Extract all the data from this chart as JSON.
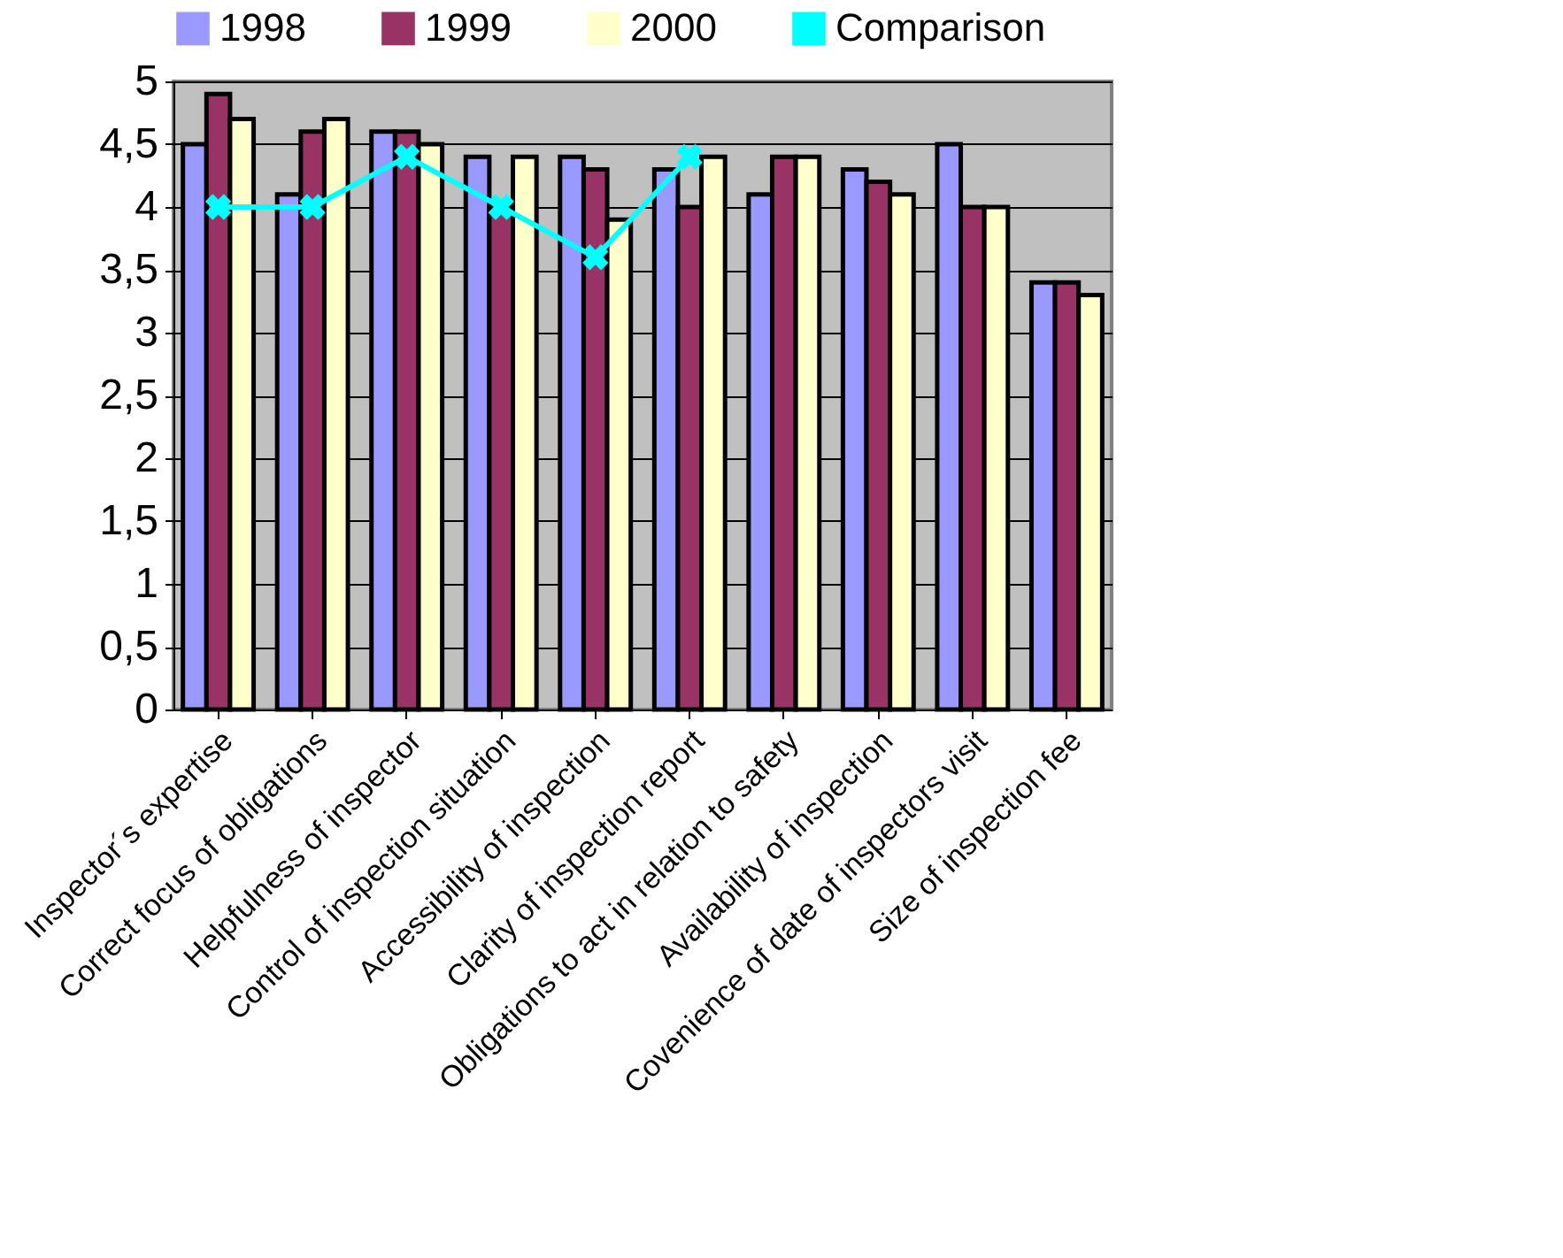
{
  "chart_data": {
    "type": "bar",
    "categories": [
      "Inspector´s expertise",
      "Correct focus of obligations",
      "Helpfulness of inspector",
      "Control of inspection situation",
      "Accessibility of inspection",
      "Clarity of inspection report",
      "Obligations to act in relation to safety",
      "Availability of inspection",
      "Covenience of date of inspectors visit",
      "Size of inspection fee"
    ],
    "series": [
      {
        "name": "1998",
        "color": "#9999ff",
        "values": [
          4.5,
          4.1,
          4.6,
          4.4,
          4.4,
          4.3,
          4.1,
          4.3,
          4.5,
          3.4
        ]
      },
      {
        "name": "1999",
        "color": "#993366",
        "values": [
          4.9,
          4.6,
          4.6,
          4.0,
          4.3,
          4.0,
          4.4,
          4.2,
          4.0,
          3.4
        ]
      },
      {
        "name": "2000",
        "color": "#ffffcc",
        "values": [
          4.7,
          4.7,
          4.5,
          4.4,
          3.9,
          4.4,
          4.4,
          4.1,
          4.0,
          3.3
        ]
      },
      {
        "name": "Comparison",
        "type": "line",
        "color": "#00ffff",
        "marker": "cross",
        "values": [
          4.0,
          4.0,
          4.4,
          4.0,
          3.6,
          4.4,
          null,
          null,
          null,
          null
        ]
      }
    ],
    "ylim": [
      0,
      5
    ],
    "yticks": [
      0,
      {
        "value": 0.5,
        "label": "0,5"
      },
      1,
      {
        "value": 1.5,
        "label": "1,5"
      },
      2,
      {
        "value": 2.5,
        "label": "2,5"
      },
      3,
      {
        "value": 3.5,
        "label": "3,5"
      },
      4,
      {
        "value": 4.5,
        "label": "4,5"
      },
      5
    ],
    "grid": "y",
    "legend": "top"
  }
}
